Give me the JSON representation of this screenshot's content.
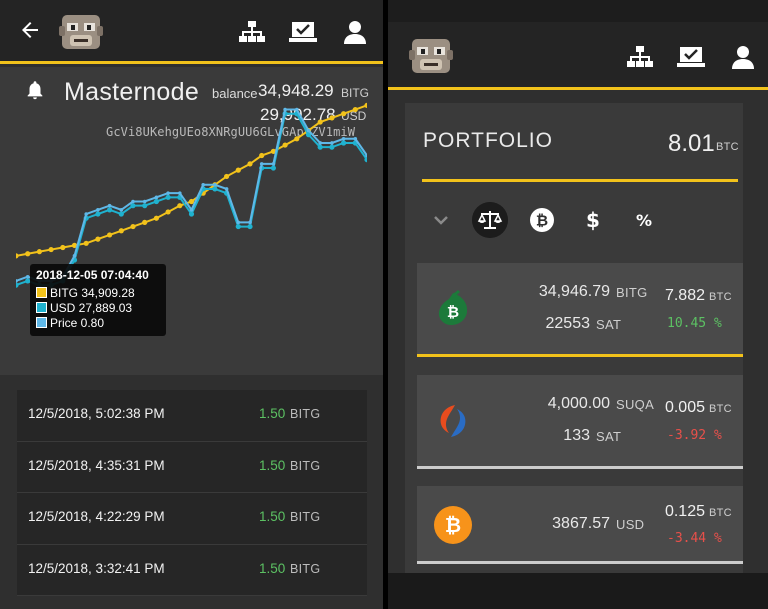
{
  "left": {
    "title": "Masternode",
    "balance_label": "balance",
    "balance_value": "34,948.29",
    "balance_unit": "BITG",
    "usd_value": "29,992.78",
    "usd_unit": "USD",
    "address": "GcVi8UKehgUEo8XNRgUU6GLvGApvZV1miW",
    "tooltip": {
      "date": "2018-12-05 07:04:40",
      "rows": [
        {
          "label": "BITG 34,909.28",
          "color": "#f2c21b"
        },
        {
          "label": "USD 27,889.03",
          "color": "#1fb2cf"
        },
        {
          "label": "Price 0.80",
          "color": "#5fb8e8"
        }
      ]
    },
    "transactions": [
      {
        "date": "12/5/2018, 5:02:38 PM",
        "amount": "1.50",
        "unit": "BITG"
      },
      {
        "date": "12/5/2018, 4:35:31 PM",
        "amount": "1.50",
        "unit": "BITG"
      },
      {
        "date": "12/5/2018, 4:22:29 PM",
        "amount": "1.50",
        "unit": "BITG"
      },
      {
        "date": "12/5/2018, 3:32:41 PM",
        "amount": "1.50",
        "unit": "BITG"
      }
    ]
  },
  "right": {
    "portfolio_title": "PORTFOLIO",
    "portfolio_total": "8.01",
    "portfolio_unit": "BTC",
    "filters": [
      "chevron-down-icon",
      "balance-scale-icon",
      "bitcoin-icon",
      "dollar-icon",
      "percent-icon"
    ],
    "coins": [
      {
        "icon": "bitcoin-green-icon",
        "amount": "34,946.79",
        "unit": "BITG",
        "price": "22553",
        "price_unit": "SAT",
        "btc": "7.882",
        "btc_unit": "BTC",
        "change": "10.45 %",
        "dir": "pos"
      },
      {
        "icon": "suqa-icon",
        "amount": "4,000.00",
        "unit": "SUQA",
        "price": "133",
        "price_unit": "SAT",
        "btc": "0.005",
        "btc_unit": "BTC",
        "change": "-3.92 %",
        "dir": "neg"
      },
      {
        "icon": "bitcoin-icon",
        "amount": "3867.57",
        "unit": "USD",
        "price": "",
        "price_unit": "",
        "btc": "0.125",
        "btc_unit": "BTC",
        "change": "-3.44 %",
        "dir": "neg"
      }
    ]
  },
  "colors": {
    "accent": "#f2c21b",
    "positive": "#5cc163",
    "negative": "#e8504a"
  },
  "chart_data": {
    "type": "line",
    "title": "",
    "xlabel": "",
    "ylabel": "",
    "series": [
      {
        "name": "BITG",
        "color": "#f2c21b",
        "values": [
          24,
          25,
          26,
          27,
          28,
          29,
          30,
          32,
          34,
          36,
          38,
          40,
          42,
          45,
          48,
          50,
          54,
          58,
          62,
          65,
          68,
          72,
          74,
          77,
          80,
          84,
          88,
          90,
          92,
          94,
          96
        ]
      },
      {
        "name": "USD",
        "color": "#1fb2cf",
        "values": [
          10,
          12,
          10,
          10,
          12,
          22,
          42,
          44,
          46,
          44,
          48,
          48,
          50,
          52,
          52,
          44,
          56,
          56,
          54,
          38,
          38,
          66,
          66,
          92,
          92,
          82,
          76,
          76,
          78,
          78,
          70
        ]
      },
      {
        "name": "Price",
        "color": "#5fb8e8",
        "values": [
          12,
          14,
          12,
          12,
          14,
          24,
          44,
          46,
          48,
          46,
          50,
          50,
          52,
          54,
          54,
          46,
          58,
          58,
          56,
          40,
          40,
          68,
          68,
          94,
          94,
          84,
          78,
          78,
          80,
          80,
          72
        ]
      }
    ]
  }
}
